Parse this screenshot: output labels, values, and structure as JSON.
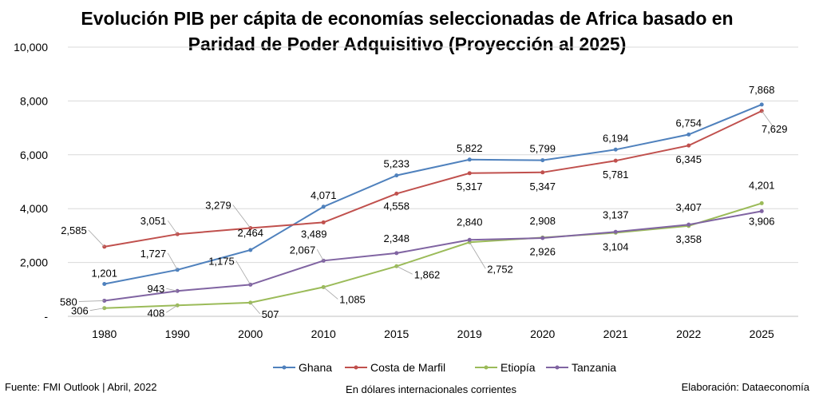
{
  "chart_data": {
    "type": "line",
    "title_lines": [
      "Evolución PIB per cápita de economías seleccionadas de Africa basado en",
      "Paridad de Poder Adquisitivo (Proyección al 2025)"
    ],
    "categories": [
      "1980",
      "1990",
      "2000",
      "2010",
      "2015",
      "2019",
      "2020",
      "2021",
      "2022",
      "2025"
    ],
    "ylim": [
      0,
      10000
    ],
    "yticks": [
      0,
      2000,
      4000,
      6000,
      8000,
      10000
    ],
    "ytick_labels": [
      "-",
      "2,000",
      "4,000",
      "6,000",
      "8,000",
      "10,000"
    ],
    "grid": true,
    "legend_position": "bottom",
    "series": [
      {
        "name": "Ghana",
        "color": "#4F81BD",
        "values": [
          1201,
          1727,
          2464,
          4071,
          5233,
          5822,
          5799,
          6194,
          6754,
          7868
        ],
        "labels": [
          "1,201",
          "1,727",
          "2,464",
          "4,071",
          "5,233",
          "5,822",
          "5,799",
          "6,194",
          "6,754",
          "7,868"
        ]
      },
      {
        "name": "Costa de Marfil",
        "color": "#C0504D",
        "values": [
          2585,
          3051,
          3279,
          3489,
          4558,
          5317,
          5347,
          5781,
          6345,
          7629
        ],
        "labels": [
          "2,585",
          "3,051",
          "3,279",
          "3,489",
          "4,558",
          "5,317",
          "5,347",
          "5,781",
          "6,345",
          "7,629"
        ]
      },
      {
        "name": "Etiopía",
        "color": "#9BBB59",
        "values": [
          306,
          408,
          507,
          1085,
          1862,
          2752,
          2926,
          3104,
          3358,
          4201
        ],
        "labels": [
          "306",
          "408",
          "507",
          "1,085",
          "1,862",
          "2,752",
          "2,926",
          "3,104",
          "3,358",
          "4,201"
        ]
      },
      {
        "name": "Tanzania",
        "color": "#8064A2",
        "values": [
          580,
          943,
          1175,
          2067,
          2348,
          2840,
          2908,
          3137,
          3407,
          3906
        ],
        "labels": [
          "580",
          "943",
          "1,175",
          "2,067",
          "2,348",
          "2,840",
          "2,908",
          "3,137",
          "3,407",
          "3,906"
        ]
      }
    ]
  },
  "footer": {
    "source": "Fuente: FMI Outlook | Abril, 2022",
    "units": "En dólares internacionales corrientes",
    "credit": "Elaboración: Dataeconomía"
  }
}
